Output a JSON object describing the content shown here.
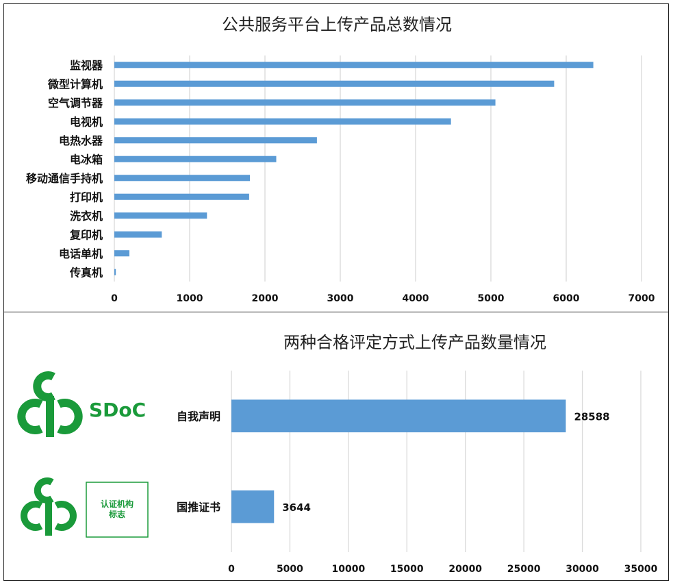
{
  "colors": {
    "bar": "#5b9bd5",
    "grid": "#d9d9d9",
    "logo_green": "#1a9a3a"
  },
  "chart_data": [
    {
      "type": "bar",
      "orientation": "horizontal",
      "title": "公共服务平台上传产品总数情况",
      "categories": [
        "监视器",
        "微型计算机",
        "空气调节器",
        "电视机",
        "电热水器",
        "电冰箱",
        "移动通信手持机",
        "打印机",
        "洗衣机",
        "复印机",
        "电话单机",
        "传真机"
      ],
      "values": [
        6360,
        5840,
        5060,
        4470,
        2690,
        2150,
        1800,
        1790,
        1230,
        630,
        200,
        20
      ],
      "xlim": [
        0,
        7000
      ],
      "xticks": [
        "0",
        "1000",
        "2000",
        "3000",
        "4000",
        "5000",
        "6000",
        "7000"
      ],
      "grid": true,
      "legend": "none"
    },
    {
      "type": "bar",
      "orientation": "horizontal",
      "title": "两种合格评定方式上传产品数量情况",
      "categories": [
        "自我声明",
        "国推证书"
      ],
      "values": [
        28588,
        3644
      ],
      "data_labels": [
        "28588",
        "3644"
      ],
      "xlim": [
        0,
        35000
      ],
      "xticks": [
        "0",
        "5000",
        "10000",
        "15000",
        "20000",
        "25000",
        "30000",
        "35000"
      ],
      "grid": true,
      "legend": "none"
    }
  ],
  "logos": {
    "sdoc": {
      "icon": "ccc-mark-icon",
      "text": "SDoC"
    },
    "cert": {
      "icon": "ccc-mark-icon",
      "text": "认证机构标志"
    }
  }
}
